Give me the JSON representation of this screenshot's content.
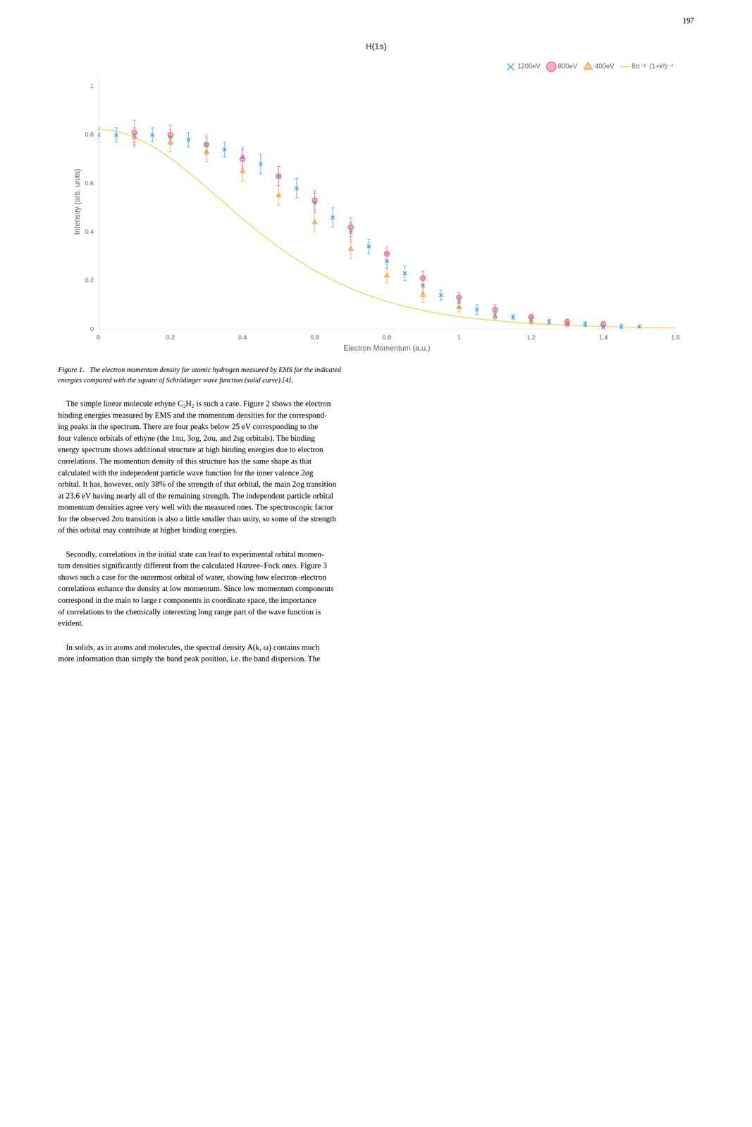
{
  "chart_data": {
    "type": "scatter",
    "title": "H(1s)",
    "xlabel": "Electron Momentum (a.u.)",
    "ylabel": "Intensity (arb. units)",
    "xlim": [
      0,
      1.6
    ],
    "ylim": [
      0,
      1.05
    ],
    "xticks": [
      0,
      0.2,
      0.4,
      0.6,
      0.8,
      1,
      1.2,
      1.4,
      1.6
    ],
    "yticks": [
      0,
      0.2,
      0.4,
      0.6,
      0.8,
      1
    ],
    "grid": false,
    "legend": "upper right",
    "series": [
      {
        "name": "1200eV",
        "type": "scatter",
        "marker": "x",
        "x": [
          0.0,
          0.05,
          0.1,
          0.15,
          0.2,
          0.25,
          0.3,
          0.35,
          0.4,
          0.45,
          0.5,
          0.55,
          0.6,
          0.65,
          0.7,
          0.75,
          0.8,
          0.85,
          0.9,
          0.95,
          1.0,
          1.05,
          1.1,
          1.15,
          1.2,
          1.25,
          1.3,
          1.35,
          1.4,
          1.45,
          1.5
        ],
        "values": [
          0.8,
          0.8,
          0.8,
          0.8,
          0.79,
          0.78,
          0.76,
          0.74,
          0.71,
          0.68,
          0.63,
          0.58,
          0.52,
          0.46,
          0.4,
          0.34,
          0.28,
          0.23,
          0.18,
          0.14,
          0.11,
          0.08,
          0.06,
          0.05,
          0.04,
          0.03,
          0.02,
          0.02,
          0.01,
          0.01,
          0.01
        ],
        "yerr": [
          0.03,
          0.03,
          0.03,
          0.03,
          0.03,
          0.03,
          0.03,
          0.03,
          0.04,
          0.04,
          0.04,
          0.04,
          0.04,
          0.04,
          0.04,
          0.03,
          0.03,
          0.03,
          0.03,
          0.02,
          0.02,
          0.02,
          0.01,
          0.01,
          0.01,
          0.01,
          0.01,
          0.01,
          0.01,
          0.01,
          0.005
        ]
      },
      {
        "name": "800eV",
        "type": "scatter",
        "marker": "circle",
        "x": [
          0.1,
          0.2,
          0.3,
          0.4,
          0.5,
          0.6,
          0.7,
          0.8,
          0.9,
          1.0,
          1.1,
          1.2,
          1.3,
          1.4
        ],
        "values": [
          0.81,
          0.8,
          0.76,
          0.7,
          0.63,
          0.53,
          0.42,
          0.31,
          0.21,
          0.13,
          0.08,
          0.05,
          0.03,
          0.02
        ],
        "yerr": [
          0.05,
          0.04,
          0.04,
          0.04,
          0.04,
          0.04,
          0.04,
          0.03,
          0.03,
          0.02,
          0.02,
          0.01,
          0.01,
          0.01
        ]
      },
      {
        "name": "400eV",
        "type": "scatter",
        "marker": "triangle",
        "x": [
          0.1,
          0.2,
          0.3,
          0.4,
          0.5,
          0.6,
          0.7,
          0.8,
          0.9,
          1.0,
          1.1,
          1.2,
          1.3
        ],
        "values": [
          0.79,
          0.77,
          0.73,
          0.65,
          0.55,
          0.44,
          0.33,
          0.22,
          0.14,
          0.09,
          0.05,
          0.03,
          0.02
        ],
        "yerr": [
          0.04,
          0.04,
          0.04,
          0.04,
          0.04,
          0.04,
          0.04,
          0.03,
          0.03,
          0.02,
          0.01,
          0.01,
          0.01
        ]
      },
      {
        "name": "8π⁻²  (1+k²)⁻⁴",
        "type": "line",
        "line_style": "solid",
        "x": [
          0,
          0.05,
          0.1,
          0.15,
          0.2,
          0.25,
          0.3,
          0.35,
          0.4,
          0.45,
          0.5,
          0.55,
          0.6,
          0.65,
          0.7,
          0.75,
          0.8,
          0.85,
          0.9,
          0.95,
          1,
          1.05,
          1.1,
          1.15,
          1.2,
          1.25,
          1.3,
          1.35,
          1.4,
          1.45,
          1.5,
          1.55,
          1.6
        ],
        "values": [
          0.824,
          0.81581,
          0.79185,
          0.75383,
          0.70436,
          0.64657,
          0.58374,
          0.51902,
          0.45509,
          0.39408,
          0.33751,
          0.2863,
          0.24086,
          0.20124,
          0.16718,
          0.13824,
          0.11391,
          0.0936,
          0.07677,
          0.0629,
          0.0515,
          0.04217,
          0.03454,
          0.02832,
          0.02325,
          0.01911,
          0.01574,
          0.01298,
          0.01073,
          0.00889,
          0.00739,
          0.00615,
          0.00513
        ]
      }
    ],
    "page_number": "197",
    "caption": "Figure 1.   The electron momentum density for atomic hydrogen measured by EMS for the indicated\nenergies compared with the square of Schrödinger wave function (solid curve) [4].",
    "body": [
      "    The simple linear molecule ethyne C₂H₂ is such a case. Figure 2 shows the electron\nbinding energies measured by EMS and the momentum densities for the correspond-\ning peaks in the spectrum. There are four peaks below 25 eV corresponding to the\nfour valence orbitals of ethyne (the 1πu, 3σg, 2σu, and 2sg orbitals). The binding\nenergy spectrum shows additional structure at high binding energies due to electron\ncorrelations. The momentum density of this structure has the same shape as that\ncalculated with the independent particle wave function for the inner valence 2σg\norbital. It has, however, only 38% of the strength of that orbital, the main 2σg transition\nat 23.6 eV having nearly all of the remaining strength. The independent particle orbital\nmomentum densities agree very well with the measured ones. The spectroscopic factor\nfor the observed 2σu transition is also a little smaller than unity, so some of the strength\nof this orbital may contribute at higher binding energies.",
      "    Secondly, correlations in the initial state can lead to experimental orbital momen-\ntum densities significantly different from the calculated Hartree–Fock ones. Figure 3\nshows such a case for the outermost orbital of water, showing how electron–electron\ncorrelations enhance the density at low momentum. Since low momentum components\ncorrespond in the main to large r components in coordinate space, the importance\nof correlations to the chemically interesting long range part of the wave function is\nevident.",
      "    In solids, as in atoms and molecules, the spectral density A(k, ω) contains much\nmore information than simply the band peak position, i.e. the band dispersion. The"
    ]
  }
}
